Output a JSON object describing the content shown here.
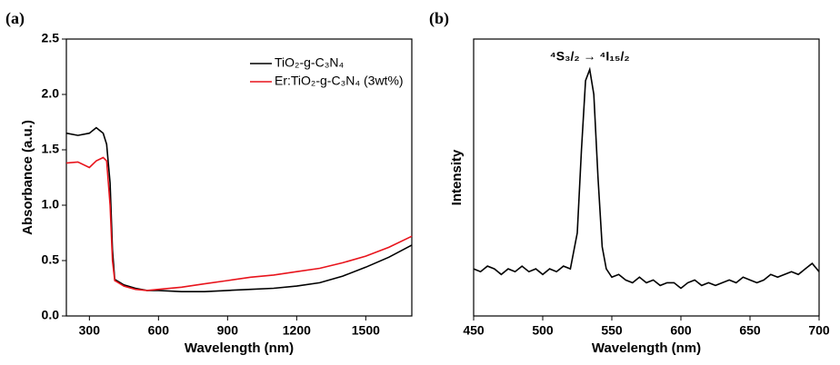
{
  "chart_data": [
    {
      "type": "line",
      "panel_label": "(a)",
      "xlabel": "Wavelength (nm)",
      "ylabel": "Absorbance (a.u.)",
      "x": [
        200,
        250,
        300,
        330,
        360,
        375,
        390,
        400,
        410,
        450,
        500,
        550,
        600,
        700,
        800,
        900,
        1000,
        1100,
        1200,
        1300,
        1400,
        1500,
        1600,
        1700
      ],
      "series": [
        {
          "name": "TiO₂-g-C₃N₄",
          "color": "#000000",
          "values": [
            1.65,
            1.63,
            1.65,
            1.7,
            1.65,
            1.55,
            1.2,
            0.6,
            0.33,
            0.28,
            0.25,
            0.23,
            0.23,
            0.22,
            0.22,
            0.23,
            0.24,
            0.25,
            0.27,
            0.3,
            0.36,
            0.44,
            0.53,
            0.64
          ]
        },
        {
          "name": "Er:TiO₂-g-C₃N₄ (3wt%)",
          "color": "#e8141c",
          "values": [
            1.38,
            1.39,
            1.34,
            1.4,
            1.43,
            1.4,
            1.0,
            0.5,
            0.32,
            0.27,
            0.24,
            0.23,
            0.24,
            0.26,
            0.29,
            0.32,
            0.35,
            0.37,
            0.4,
            0.43,
            0.48,
            0.54,
            0.62,
            0.72
          ]
        }
      ],
      "xlim": [
        200,
        1700
      ],
      "ylim": [
        0,
        2.5
      ],
      "xticks": [
        300,
        600,
        900,
        1200,
        1500
      ],
      "yticks": [
        {
          "value": 0,
          "label": "0.0"
        },
        0.5,
        {
          "value": 1,
          "label": "1.0"
        },
        1.5,
        {
          "value": 2,
          "label": "2.0"
        },
        2.5
      ],
      "legend": "upper right"
    },
    {
      "type": "line",
      "panel_label": "(b)",
      "xlabel": "Wavelength (nm)",
      "ylabel": "Intensity",
      "annotation": "⁴S₃/₂ → ⁴I₁₅/₂",
      "x": [
        450,
        455,
        460,
        465,
        470,
        475,
        480,
        485,
        490,
        495,
        500,
        505,
        510,
        515,
        520,
        525,
        528,
        531,
        534,
        537,
        540,
        543,
        546,
        550,
        555,
        560,
        565,
        570,
        575,
        580,
        585,
        590,
        595,
        600,
        605,
        610,
        615,
        620,
        625,
        630,
        635,
        640,
        645,
        650,
        655,
        660,
        665,
        670,
        675,
        680,
        685,
        690,
        695,
        700
      ],
      "series": [
        {
          "color": "#000000",
          "values": [
            0.17,
            0.16,
            0.18,
            0.17,
            0.15,
            0.17,
            0.16,
            0.18,
            0.16,
            0.17,
            0.15,
            0.17,
            0.16,
            0.18,
            0.17,
            0.3,
            0.6,
            0.85,
            0.89,
            0.8,
            0.5,
            0.25,
            0.17,
            0.14,
            0.15,
            0.13,
            0.12,
            0.14,
            0.12,
            0.13,
            0.11,
            0.12,
            0.12,
            0.1,
            0.12,
            0.13,
            0.11,
            0.12,
            0.11,
            0.12,
            0.13,
            0.12,
            0.14,
            0.13,
            0.12,
            0.13,
            0.15,
            0.14,
            0.15,
            0.16,
            0.15,
            0.17,
            0.19,
            0.16
          ]
        }
      ],
      "xlim": [
        450,
        700
      ],
      "ylim": [
        0,
        1
      ],
      "xticks": [
        450,
        500,
        550,
        600,
        650,
        700
      ]
    }
  ]
}
